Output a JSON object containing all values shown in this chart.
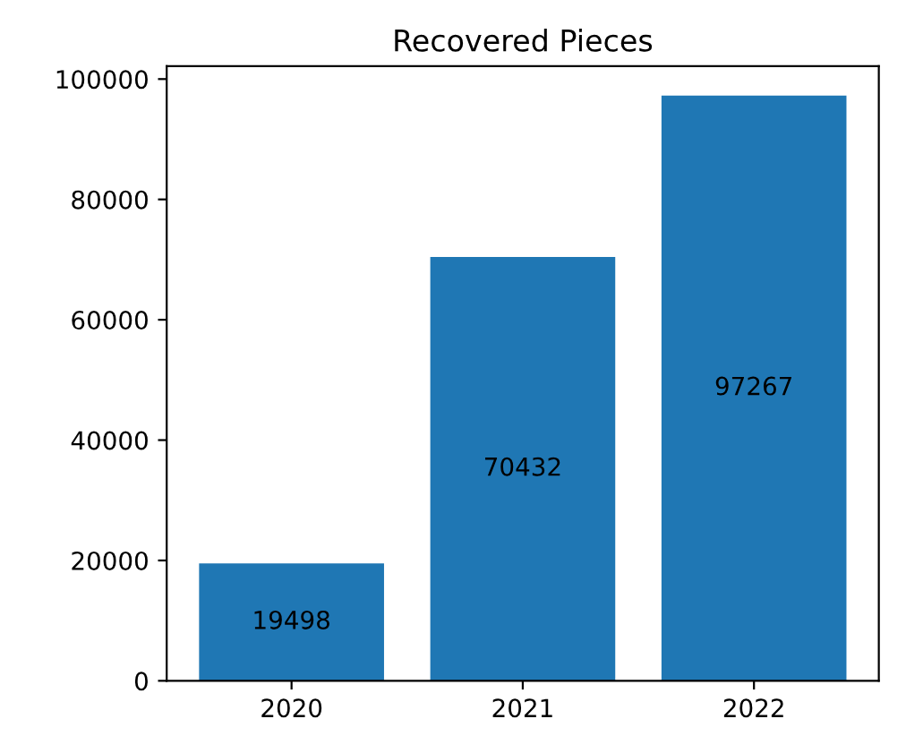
{
  "chart_data": {
    "type": "bar",
    "title": "Recovered Pieces",
    "categories": [
      "2020",
      "2021",
      "2022"
    ],
    "values": [
      19498,
      70432,
      97267
    ],
    "color": "#1f77b4",
    "ylim": [
      0,
      102130
    ],
    "yticks": [
      0,
      20000,
      40000,
      60000,
      80000,
      100000
    ],
    "data_labels": true,
    "grid": false
  }
}
